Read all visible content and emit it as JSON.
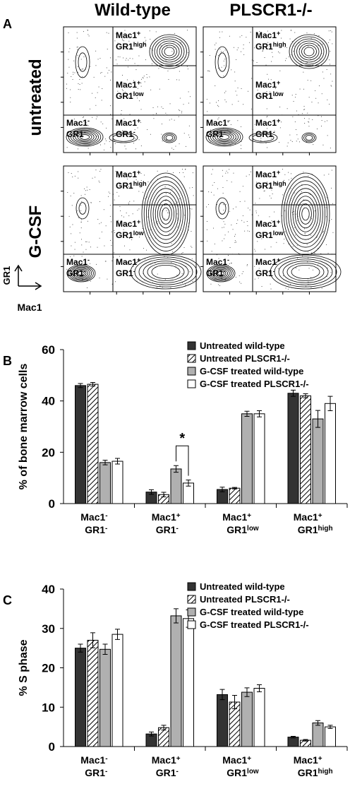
{
  "panel_a": {
    "letter": "A",
    "col_headers": [
      "Wild-type",
      "PLSCR1-/-"
    ],
    "row_headers": [
      "untreated",
      "G-CSF"
    ],
    "y_axis": "GR1",
    "x_axis": "Mac1",
    "gate_labels": {
      "tr": [
        "Mac1",
        "+",
        "GR1",
        "high"
      ],
      "mr": [
        "Mac1",
        "+",
        "GR1",
        "low"
      ],
      "bl": [
        "Mac1",
        "-",
        "GR1",
        "-"
      ],
      "br": [
        "Mac1",
        "+",
        "GR1",
        "-"
      ]
    }
  },
  "chart_data": [
    {
      "letter": "B",
      "type": "bar",
      "ylabel": "% of bone marrow cells",
      "ylim": [
        0,
        60
      ],
      "yticks": [
        0,
        20,
        40,
        60
      ],
      "categories": [
        {
          "l1": "Mac1",
          "s1": "-",
          "l2": "GR1",
          "s2": "-"
        },
        {
          "l1": "Mac1",
          "s1": "+",
          "l2": "GR1",
          "s2": "-"
        },
        {
          "l1": "Mac1",
          "s1": "+",
          "l2": "GR1",
          "s2": "low"
        },
        {
          "l1": "Mac1",
          "s1": "+",
          "l2": "GR1",
          "s2": "high"
        }
      ],
      "series": [
        {
          "name": "Untreated wild-type",
          "values": [
            46,
            4.5,
            5.5,
            43
          ],
          "errors": [
            0.8,
            0.9,
            0.9,
            1.2
          ],
          "style": "solid-dark"
        },
        {
          "name": "Untreated PLSCR1-/-",
          "values": [
            46.5,
            3.5,
            6,
            42
          ],
          "errors": [
            0.7,
            0.9,
            0.3,
            0.8
          ],
          "style": "hatched"
        },
        {
          "name": "G-CSF treated wild-type",
          "values": [
            16,
            13.5,
            35,
            33
          ],
          "errors": [
            0.9,
            1.3,
            1.0,
            3.3
          ],
          "style": "gray"
        },
        {
          "name": "G-CSF treated PLSCR1-/-",
          "values": [
            16.5,
            8,
            35,
            39
          ],
          "errors": [
            1.1,
            1.2,
            1.2,
            2.8
          ],
          "style": "white"
        }
      ],
      "significance": {
        "category_index": 1,
        "series_pair": [
          2,
          3
        ],
        "symbol": "*"
      }
    },
    {
      "letter": "C",
      "type": "bar",
      "ylabel": "% S phase",
      "ylim": [
        0,
        40
      ],
      "yticks": [
        0,
        10,
        20,
        30,
        40
      ],
      "categories": [
        {
          "l1": "Mac1",
          "s1": "-",
          "l2": "GR1",
          "s2": "-"
        },
        {
          "l1": "Mac1",
          "s1": "+",
          "l2": "GR1",
          "s2": "-"
        },
        {
          "l1": "Mac1",
          "s1": "+",
          "l2": "GR1",
          "s2": "low"
        },
        {
          "l1": "Mac1",
          "s1": "+",
          "l2": "GR1",
          "s2": "high"
        }
      ],
      "series": [
        {
          "name": "Untreated wild-type",
          "values": [
            25,
            3.2,
            13.2,
            2.4
          ],
          "errors": [
            1.0,
            0.5,
            1.3,
            0.2
          ],
          "style": "solid-dark"
        },
        {
          "name": "Untreated PLSCR1-/-",
          "values": [
            27,
            4.8,
            11.3,
            1.6
          ],
          "errors": [
            1.9,
            0.6,
            1.7,
            0.2
          ],
          "style": "hatched"
        },
        {
          "name": "G-CSF treated wild-type",
          "values": [
            24.7,
            33.2,
            13.8,
            6
          ],
          "errors": [
            1.3,
            1.8,
            1.1,
            0.6
          ],
          "style": "gray"
        },
        {
          "name": "G-CSF treated PLSCR1-/-",
          "values": [
            28.5,
            32.5,
            14.8,
            5
          ],
          "errors": [
            1.3,
            2.2,
            0.9,
            0.4
          ],
          "style": "white"
        }
      ]
    }
  ]
}
